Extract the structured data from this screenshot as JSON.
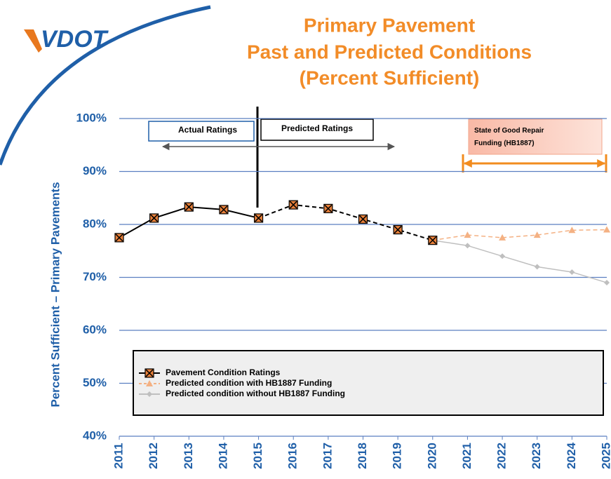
{
  "logo": "VDOT",
  "chart_data": {
    "type": "line",
    "title": [
      "Primary Pavement",
      "Past and Predicted Conditions",
      "(Percent Sufficient)"
    ],
    "y_label": "Percent Sufficient – Primary Pavements",
    "categories": [
      "2011",
      "2012",
      "2013",
      "2014",
      "2015",
      "2016",
      "2017",
      "2018",
      "2019",
      "2020",
      "2021",
      "2022",
      "2023",
      "2024",
      "2025"
    ],
    "series": [
      {
        "name": "Pavement Condition Ratings",
        "color": "#000000",
        "marker_fill": "#e8803a",
        "dashed_from": "2015",
        "values": [
          77.5,
          81.2,
          83.3,
          82.8,
          81.2,
          83.7,
          83,
          81,
          79,
          77,
          null,
          null,
          null,
          null,
          null
        ]
      },
      {
        "name": "Predicted condition with HB1887 Funding",
        "color": "#f4b183",
        "dashed_from": "2020",
        "values": [
          null,
          null,
          null,
          null,
          null,
          null,
          null,
          null,
          null,
          77,
          78,
          77.5,
          78,
          78.9,
          79
        ]
      },
      {
        "name": "Predicted condition without HB1887 Funding",
        "color": "#bfbfbf",
        "values": [
          null,
          null,
          null,
          null,
          null,
          null,
          null,
          null,
          null,
          77,
          76,
          74,
          72,
          71,
          69
        ]
      }
    ],
    "ylim": [
      40,
      100
    ],
    "yticks": [
      {
        "value": 40,
        "label": "40%"
      },
      {
        "value": 50,
        "label": "50%"
      },
      {
        "value": 60,
        "label": "60%"
      },
      {
        "value": 70,
        "label": "70%"
      },
      {
        "value": 80,
        "label": "80%"
      },
      {
        "value": 90,
        "label": "90%"
      },
      {
        "value": 100,
        "label": "100%"
      }
    ],
    "grid": true,
    "annotations": [
      "Actual Ratings",
      "Predicted Ratings",
      "State of Good Repair Funding (HB1887)"
    ]
  }
}
